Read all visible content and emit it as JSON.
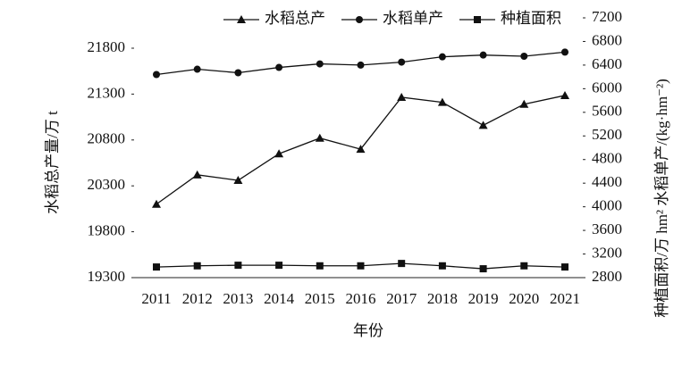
{
  "chart_data": {
    "type": "line",
    "xlabel": "年份",
    "ylabel": "水稻总产量/万 t",
    "y2label": "种植面积/万 hm²  水稻单产/(kg·hm⁻²)",
    "categories": [
      "2011",
      "2012",
      "2013",
      "2014",
      "2015",
      "2016",
      "2017",
      "2018",
      "2019",
      "2020",
      "2021"
    ],
    "series": [
      {
        "name": "水稻总产",
        "color": "#111111",
        "marker": "triangle",
        "values": [
          20100,
          20420,
          20360,
          20650,
          20820,
          20700,
          21265,
          21210,
          20960,
          21190,
          21285
        ]
      },
      {
        "name": "水稻单产",
        "color": "#111111",
        "marker": "circle",
        "axis": "y2",
        "values": [
          6240,
          6330,
          6270,
          6360,
          6420,
          6400,
          6450,
          6540,
          6570,
          6550,
          6620
        ]
      },
      {
        "name": "种植面积",
        "color": "#111111",
        "marker": "square",
        "axis": "y2",
        "values": [
          2980,
          3000,
          3010,
          3010,
          3000,
          3000,
          3040,
          3000,
          2950,
          3000,
          2980
        ]
      }
    ],
    "ylim": [
      19300,
      21800
    ],
    "yticks": [
      19300,
      19800,
      20300,
      20800,
      21300,
      21800
    ],
    "y2lim": [
      2800,
      7200
    ],
    "y2ticks": [
      2800,
      3200,
      3600,
      4000,
      4400,
      4800,
      5200,
      5600,
      6000,
      6400,
      6800,
      7200
    ],
    "legend": "top"
  }
}
